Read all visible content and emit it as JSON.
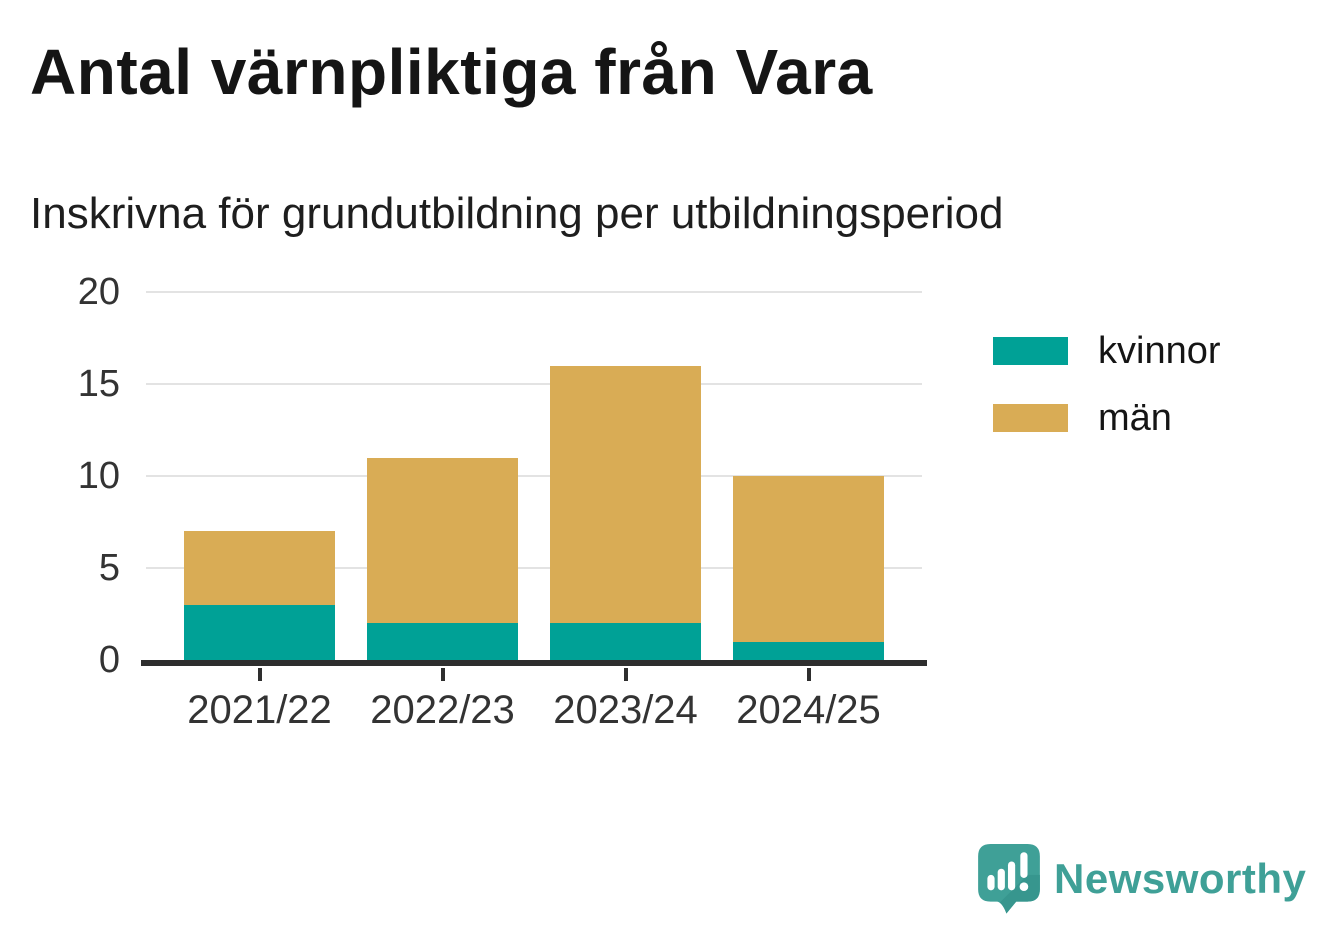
{
  "title": "Antal värnpliktiga från Vara",
  "subtitle": "Inskrivna för grundutbildning per utbildningsperiod",
  "brand": {
    "name": "Newsworthy"
  },
  "colors": {
    "kvinnor": "#00A196",
    "man": "#D9AC55",
    "brand_teal": "#3FA097",
    "axis": "#2E2E2E",
    "grid": "#E3E3E3",
    "text": "#151515"
  },
  "chart_data": {
    "type": "bar",
    "stacked": true,
    "categories": [
      "2021/22",
      "2022/23",
      "2023/24",
      "2024/25"
    ],
    "series": [
      {
        "name": "kvinnor",
        "color": "#00A196",
        "values": [
          3,
          2,
          2,
          1
        ]
      },
      {
        "name": "män",
        "color": "#D9AC55",
        "values": [
          4,
          9,
          14,
          9
        ]
      }
    ],
    "totals": [
      7,
      11,
      16,
      10
    ],
    "title": "Antal värnpliktiga från Vara",
    "subtitle": "Inskrivna för grundutbildning per utbildningsperiod",
    "xlabel": "",
    "ylabel": "",
    "ylim": [
      0,
      20
    ],
    "yticks": [
      0,
      5,
      10,
      15,
      20
    ],
    "grid": true,
    "legend_position": "right"
  }
}
